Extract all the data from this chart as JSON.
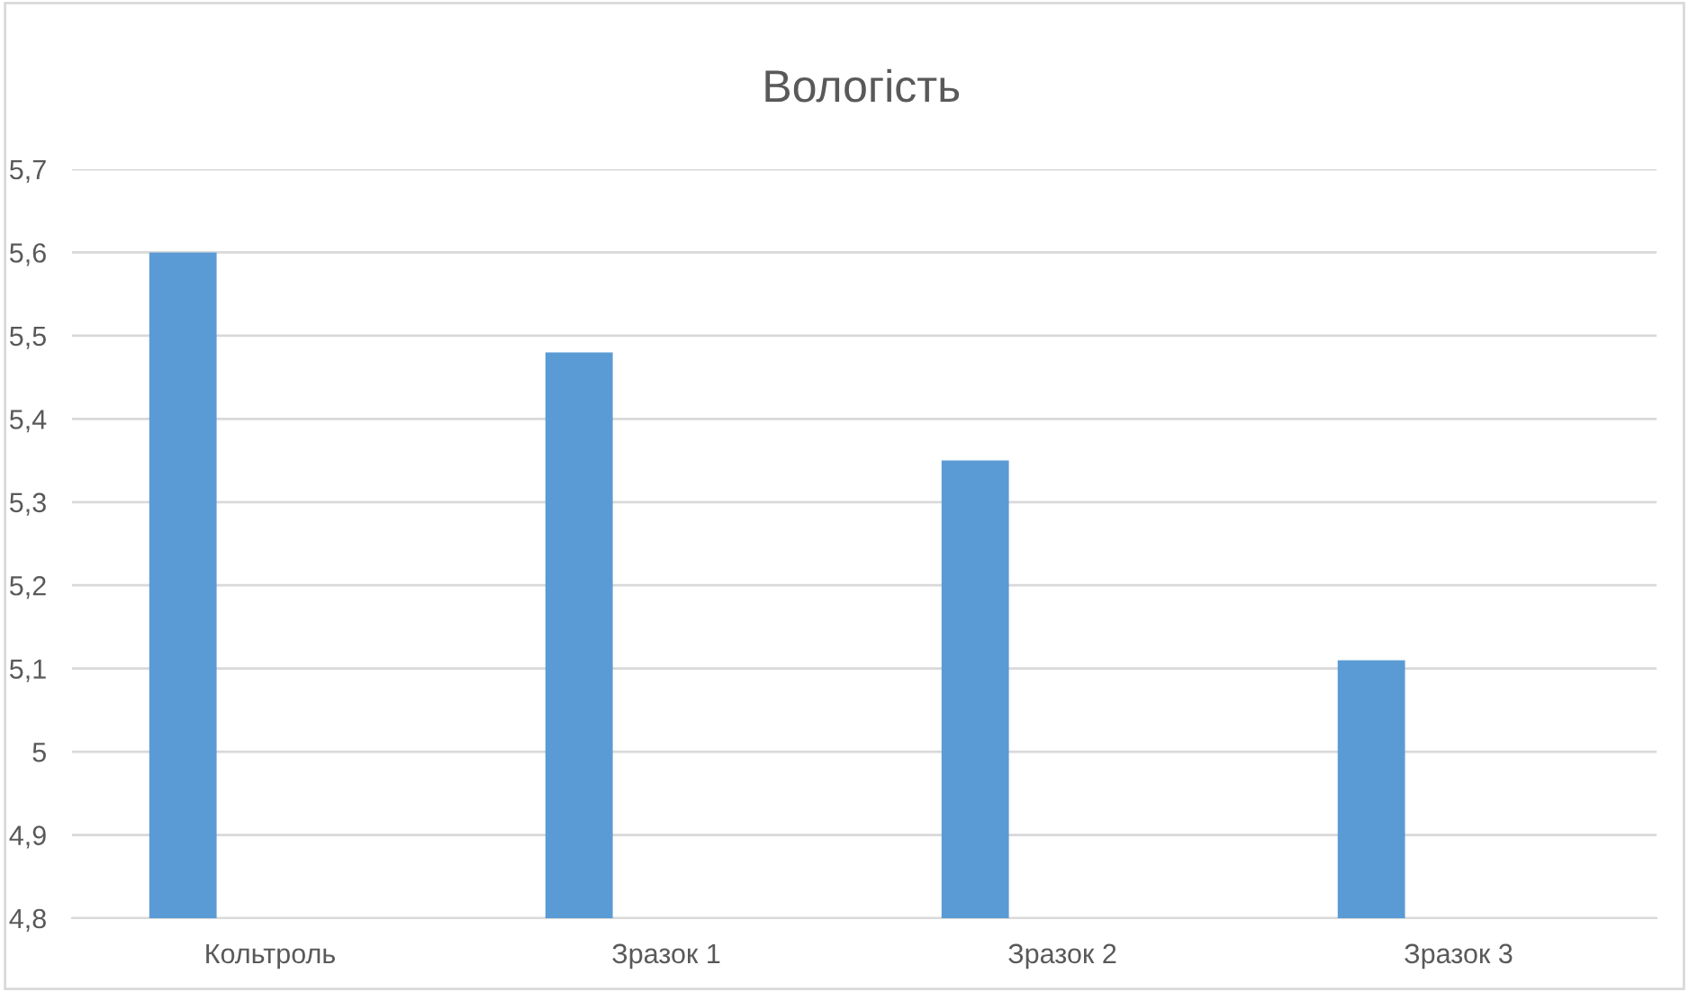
{
  "chart_data": {
    "type": "bar",
    "title": "Вологість",
    "categories": [
      "Кольтроль",
      "Зразок 1",
      "Зразок 2",
      "Зразок 3"
    ],
    "values": [
      5.6,
      5.48,
      5.35,
      5.11
    ],
    "color": "#5b9bd5",
    "ylim": [
      4.8,
      5.7
    ],
    "yticks": [
      {
        "value": 4.8,
        "label": "4,8"
      },
      {
        "value": 4.9,
        "label": "4,9"
      },
      {
        "value": 5.0,
        "label": "5"
      },
      {
        "value": 5.1,
        "label": "5,1"
      },
      {
        "value": 5.2,
        "label": "5,2"
      },
      {
        "value": 5.3,
        "label": "5,3"
      },
      {
        "value": 5.4,
        "label": "5,4"
      },
      {
        "value": 5.5,
        "label": "5,5"
      },
      {
        "value": 5.6,
        "label": "5,6"
      },
      {
        "value": 5.7,
        "label": "5,7"
      }
    ],
    "grid": "y"
  }
}
